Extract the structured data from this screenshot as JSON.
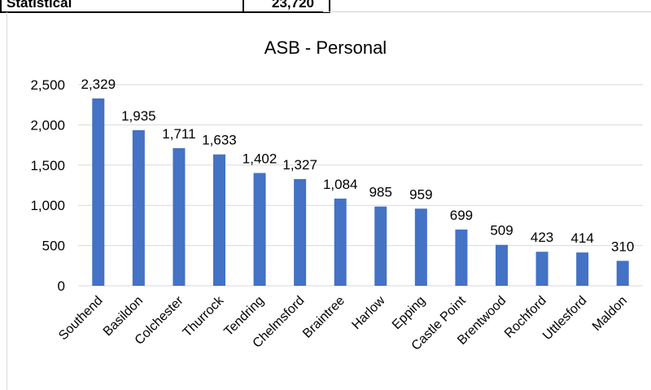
{
  "header_row": {
    "label": "Statistical",
    "value": "23,720"
  },
  "chart_data": {
    "type": "bar",
    "title": "ASB - Personal",
    "xlabel": "",
    "ylabel": "",
    "categories": [
      "Southend",
      "Basildon",
      "Colchester",
      "Thurrock",
      "Tendring",
      "Chelmsford",
      "Braintree",
      "Harlow",
      "Epping",
      "Castle Point",
      "Brentwood",
      "Rochford",
      "Uttlesford",
      "Maldon"
    ],
    "values": [
      2329,
      1935,
      1711,
      1633,
      1402,
      1327,
      1084,
      985,
      959,
      699,
      509,
      423,
      414,
      310
    ],
    "data_labels": [
      "2,329",
      "1,935",
      "1,711",
      "1,633",
      "1,402",
      "1,327",
      "1,084",
      "985",
      "959",
      "699",
      "509",
      "423",
      "414",
      "310"
    ],
    "yticks": [
      "0",
      "500",
      "1,000",
      "1,500",
      "2,000",
      "2,500"
    ],
    "ylim": [
      0,
      2500
    ],
    "grid": true,
    "legend": "none",
    "bar_color": "#4472C4",
    "grid_color": "#d9d9d9"
  }
}
